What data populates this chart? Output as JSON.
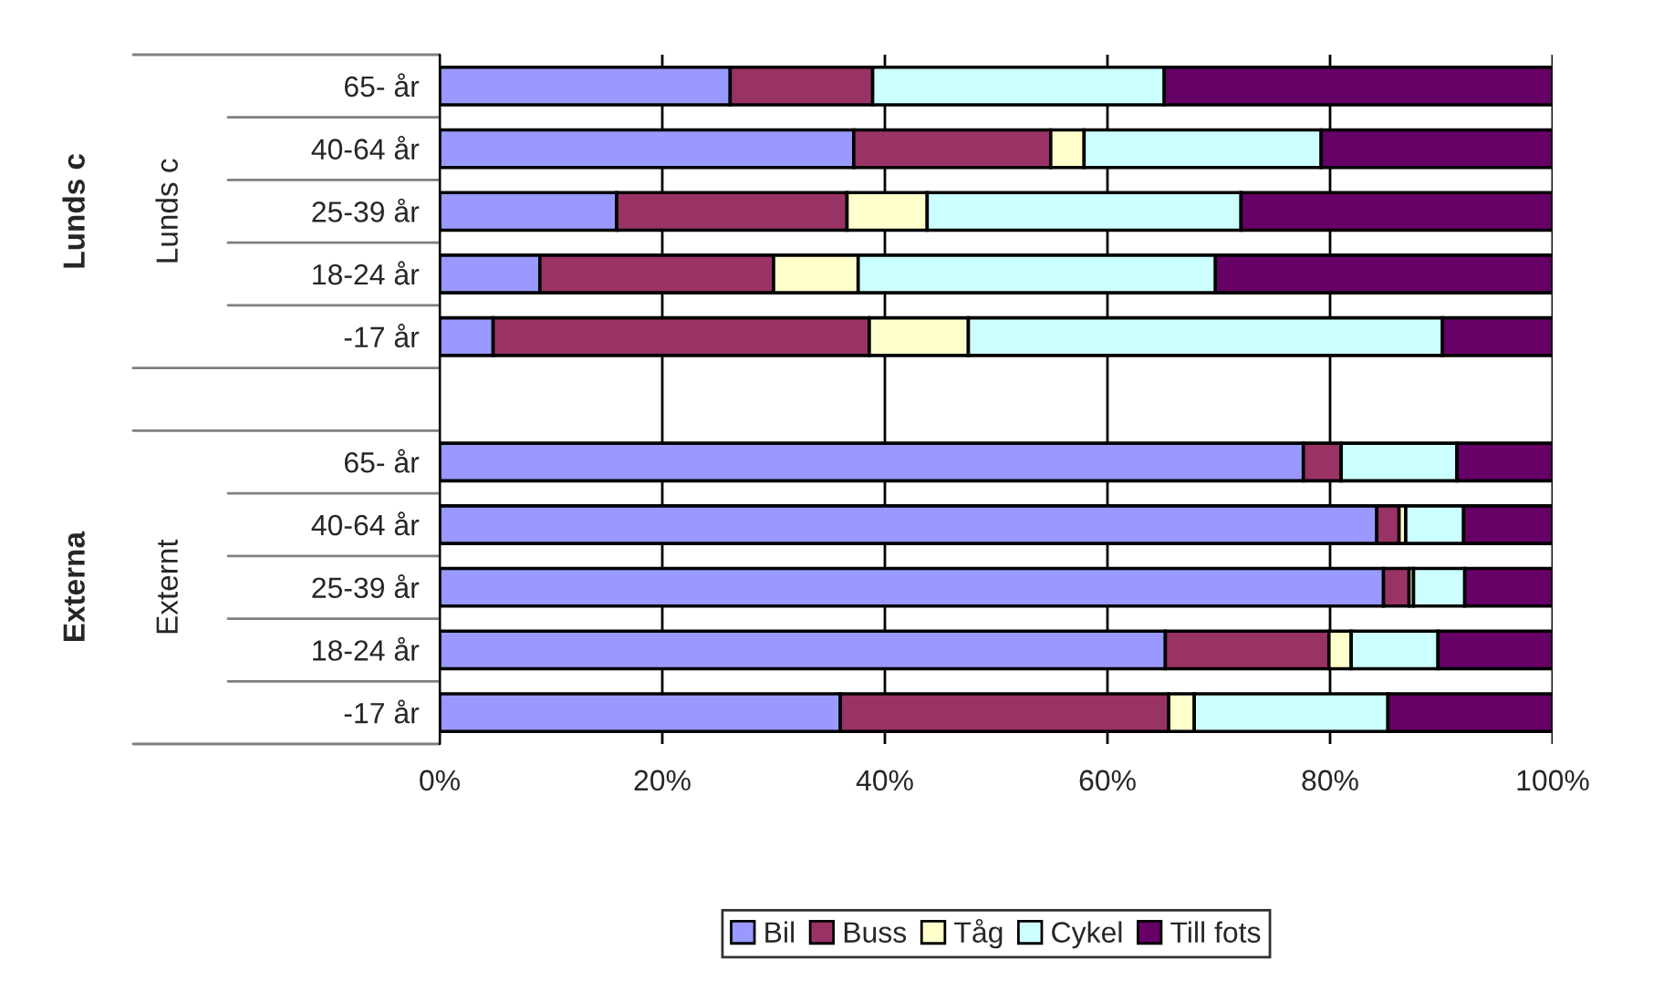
{
  "chart_data": {
    "type": "bar",
    "orientation": "horizontal",
    "stacked": true,
    "categories": [
      "65- år",
      "40-64 år",
      "25-39 år",
      "18-24 år",
      "-17 år",
      null,
      "65- år",
      "40-64 år",
      "25-39 år",
      "18-24 år",
      "-17 år"
    ],
    "series": [
      {
        "name": "Bil",
        "color": "#9999ff",
        "values": [
          26.1,
          37.2,
          15.9,
          9.0,
          4.8,
          null,
          77.6,
          84.2,
          84.8,
          65.2,
          36.0
        ]
      },
      {
        "name": "Buss",
        "color": "#993366",
        "values": [
          12.8,
          17.7,
          20.7,
          21.0,
          33.8,
          null,
          3.4,
          2.0,
          2.3,
          14.7,
          29.5
        ]
      },
      {
        "name": "Tåg",
        "color": "#ffffcc",
        "values": [
          0,
          3.0,
          7.2,
          7.6,
          8.9,
          null,
          null,
          0.6,
          0.4,
          2.0,
          2.3
        ]
      },
      {
        "name": "Cykel",
        "color": "#ccffff",
        "values": [
          26.2,
          21.3,
          28.2,
          32.1,
          42.6,
          null,
          10.4,
          5.2,
          4.6,
          7.8,
          17.4
        ]
      },
      {
        "name": "Till fots",
        "color": "#660066",
        "values": [
          34.9,
          20.8,
          28.0,
          30.3,
          9.9,
          null,
          8.6,
          8.0,
          7.9,
          10.3,
          14.8
        ]
      }
    ],
    "xlim": [
      0,
      100
    ],
    "xticks": [
      {
        "value": 0,
        "label": "0%"
      },
      {
        "value": 20,
        "label": "20%"
      },
      {
        "value": 40,
        "label": "40%"
      },
      {
        "value": 60,
        "label": "60%"
      },
      {
        "value": 80,
        "label": "80%"
      },
      {
        "value": 100,
        "label": "100%"
      }
    ],
    "annotations": [
      "Lunds c",
      "Lunds c",
      "Externa",
      "Externt"
    ],
    "grid": "x",
    "legend": "bottom"
  }
}
